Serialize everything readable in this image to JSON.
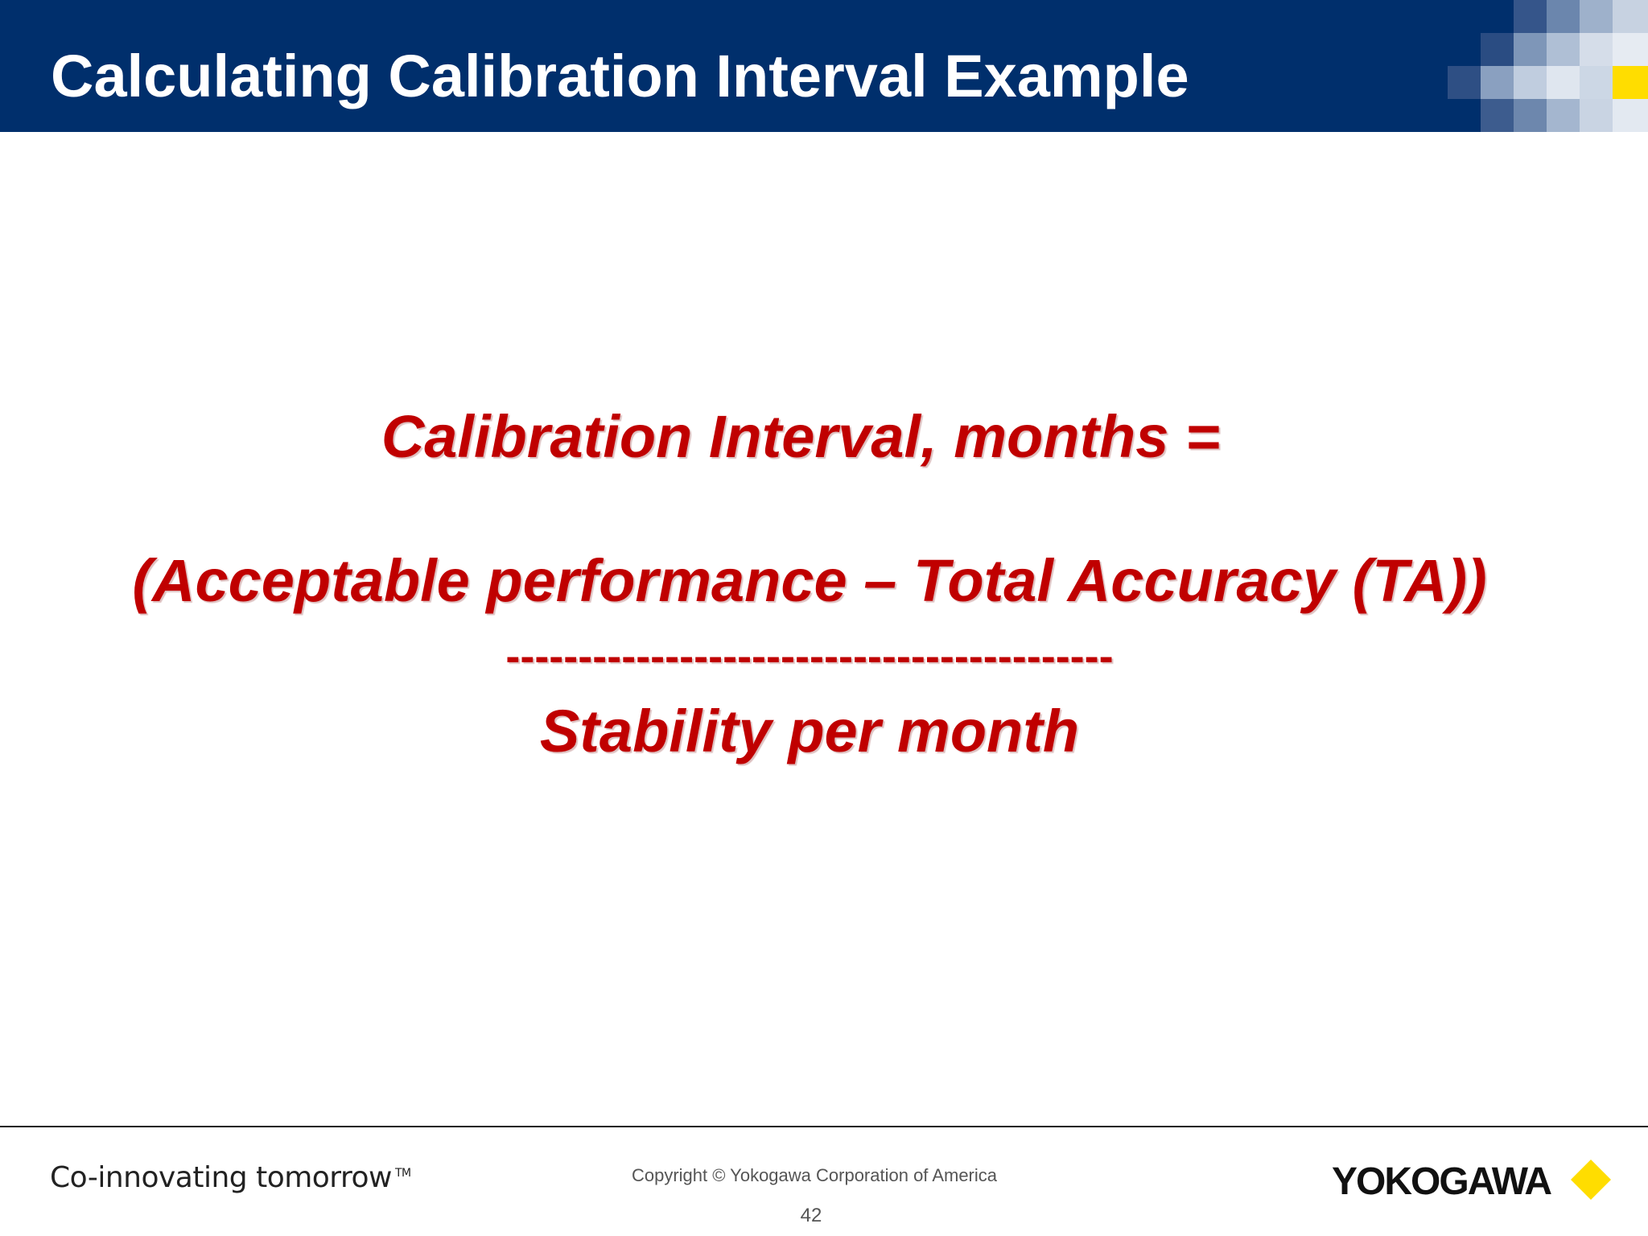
{
  "slide": {
    "title": "Calculating Calibration Interval Example"
  },
  "formula": {
    "line_1": "Calibration Interval, months =",
    "line_2": "(Acceptable performance  – Total Accuracy (TA))",
    "divider": "------------------------------------------",
    "line_3": "Stability per month"
  },
  "footer": {
    "tagline": "Co-innovating tomorrow",
    "trademark": "TM",
    "copyright": "Copyright © Yokogawa Corporation of America",
    "page_number": "42",
    "logo_text": "YOKOGAWA"
  },
  "colors": {
    "header_bg": "#002f6c",
    "formula_text": "#c00000",
    "logo_mark": "#ffdd00"
  }
}
